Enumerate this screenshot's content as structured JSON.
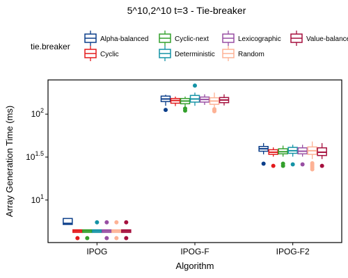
{
  "chart_data": {
    "type": "boxplot",
    "title": "5^10,2^10 t=3 - Tie-breaker",
    "xlabel": "Algorithm",
    "ylabel": "Array Generation Time (ms)",
    "y_scale": "log10",
    "ylim": [
      3.2,
      250
    ],
    "y_ticks": [
      {
        "value": 10,
        "label_base": "10",
        "label_exp": "1"
      },
      {
        "value": 31.6228,
        "label_base": "10",
        "label_exp": "1.5"
      },
      {
        "value": 100,
        "label_base": "10",
        "label_exp": "2"
      }
    ],
    "categories": [
      "IPOG",
      "IPOG-F",
      "IPOG-F2"
    ],
    "legend": {
      "title": "tie.breaker",
      "position": "top",
      "rows": [
        [
          "Alpha-balanced",
          "Cyclic-next",
          "Lexicographic",
          "Value-balanced"
        ],
        [
          "Cyclic",
          "Deterministic",
          "Random"
        ]
      ]
    },
    "series": [
      {
        "name": "Alpha-balanced",
        "color": "#0b3e8a",
        "boxes": [
          {
            "q1": 5.2,
            "median": 5.35,
            "q3": 6.1,
            "lo": 5.2,
            "hi": 6.1,
            "outliers": []
          },
          {
            "q1": 140,
            "median": 150,
            "q3": 162,
            "lo": 125,
            "hi": 168,
            "outliers": [
              112
            ]
          },
          {
            "q1": 37,
            "median": 39.5,
            "q3": 42,
            "lo": 34,
            "hi": 46,
            "outliers": [
              26.5
            ]
          }
        ]
      },
      {
        "name": "Cyclic",
        "color": "#e31a1c",
        "boxes": [
          {
            "q1": 4.2,
            "median": 4.35,
            "q3": 4.5,
            "lo": 4.2,
            "hi": 4.5,
            "outliers": [
              3.6
            ]
          },
          {
            "q1": 134,
            "median": 144,
            "q3": 152,
            "lo": 124,
            "hi": 160,
            "outliers": []
          },
          {
            "q1": 34,
            "median": 36,
            "q3": 38.5,
            "lo": 32,
            "hi": 41,
            "outliers": [
              25
            ]
          }
        ]
      },
      {
        "name": "Cyclic-next",
        "color": "#33a02c",
        "boxes": [
          {
            "q1": 4.2,
            "median": 4.35,
            "q3": 4.5,
            "lo": 4.2,
            "hi": 4.5,
            "outliers": [
              3.6
            ]
          },
          {
            "q1": 132,
            "median": 142,
            "q3": 152,
            "lo": 122,
            "hi": 160,
            "outliers": [
              110,
              116
            ]
          },
          {
            "q1": 34.5,
            "median": 36.5,
            "q3": 39.5,
            "lo": 32,
            "hi": 43,
            "outliers": [
              25,
              26.5
            ]
          }
        ]
      },
      {
        "name": "Deterministic",
        "color": "#1493a6",
        "boxes": [
          {
            "q1": 4.2,
            "median": 4.35,
            "q3": 4.5,
            "lo": 4.2,
            "hi": 4.5,
            "outliers": [
              5.5
            ]
          },
          {
            "q1": 138,
            "median": 150,
            "q3": 165,
            "lo": 125,
            "hi": 178,
            "outliers": [
              215
            ]
          },
          {
            "q1": 35,
            "median": 37.5,
            "q3": 41,
            "lo": 32,
            "hi": 44,
            "outliers": [
              26
            ]
          }
        ]
      },
      {
        "name": "Lexicographic",
        "color": "#984ea3",
        "boxes": [
          {
            "q1": 4.2,
            "median": 4.35,
            "q3": 4.5,
            "lo": 4.2,
            "hi": 4.5,
            "outliers": [
              3.6,
              5.5
            ]
          },
          {
            "q1": 138,
            "median": 148,
            "q3": 158,
            "lo": 128,
            "hi": 170,
            "outliers": []
          },
          {
            "q1": 34.5,
            "median": 37,
            "q3": 40.5,
            "lo": 32,
            "hi": 44,
            "outliers": [
              26
            ]
          }
        ]
      },
      {
        "name": "Random",
        "color": "#fdb295",
        "boxes": [
          {
            "q1": 4.2,
            "median": 4.35,
            "q3": 4.5,
            "lo": 4.2,
            "hi": 4.5,
            "outliers": [
              3.6,
              5.5
            ]
          },
          {
            "q1": 130,
            "median": 142,
            "q3": 155,
            "lo": 118,
            "hi": 178,
            "outliers": [
              108,
              111,
              114
            ]
          },
          {
            "q1": 34,
            "median": 37.5,
            "q3": 41.5,
            "lo": 30,
            "hi": 48,
            "outliers": [
              22.8,
              23.8,
              24.8,
              25.8,
              26.8
            ]
          }
        ]
      },
      {
        "name": "Value-balanced",
        "color": "#a50f3d",
        "boxes": [
          {
            "q1": 4.2,
            "median": 4.35,
            "q3": 4.5,
            "lo": 4.2,
            "hi": 4.5,
            "outliers": [
              3.6,
              5.5
            ]
          },
          {
            "q1": 136,
            "median": 146,
            "q3": 156,
            "lo": 126,
            "hi": 170,
            "outliers": []
          },
          {
            "q1": 33,
            "median": 36,
            "q3": 40.5,
            "lo": 30,
            "hi": 46,
            "outliers": [
              25
            ]
          }
        ]
      }
    ],
    "grid": false
  }
}
